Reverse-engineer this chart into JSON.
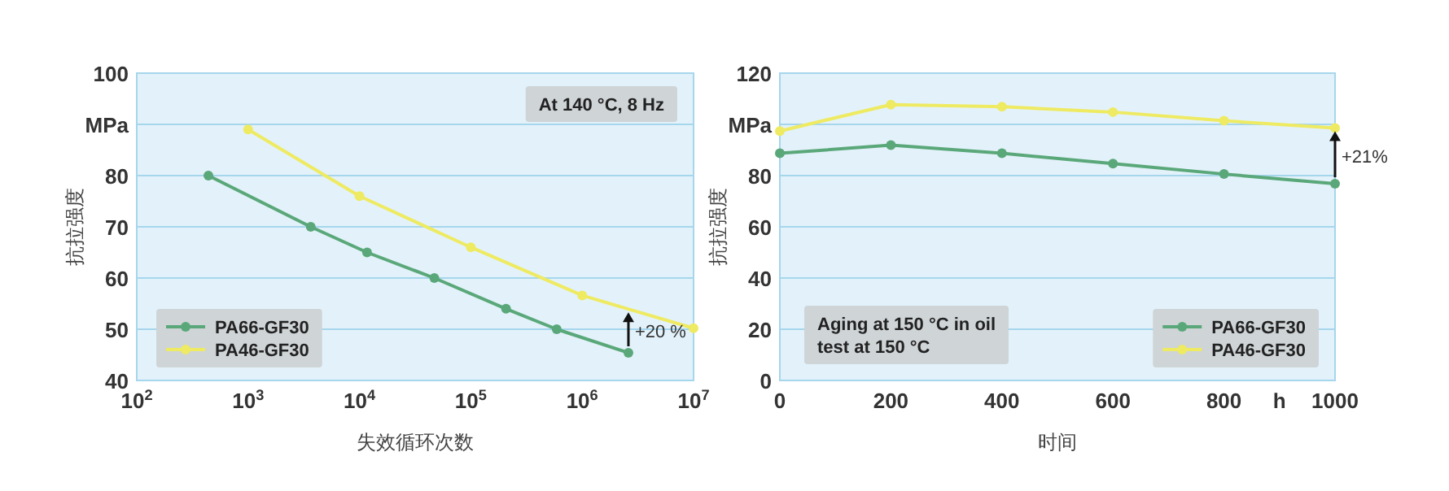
{
  "chart_data": [
    {
      "type": "line",
      "xlabel": "失效循环次数",
      "ylabel": "抗拉强度",
      "log": "x",
      "xlim": [
        100,
        10000000
      ],
      "ylim": [
        40,
        100
      ],
      "xticks": [
        {
          "value": 100,
          "label": "10$^{2}$"
        },
        {
          "value": 1000,
          "label": "10$^{3}$"
        },
        {
          "value": 10000,
          "label": "10$^{4}$"
        },
        {
          "value": 100000,
          "label": "10$^{5}$"
        },
        {
          "value": 1000000,
          "label": "10$^{6}$"
        },
        {
          "value": 10000000,
          "label": "10$^{7}$"
        }
      ],
      "yticks": [
        40,
        50,
        60,
        70,
        80,
        {
          "value": 90,
          "label": "MPa"
        },
        100
      ],
      "grid": "y",
      "legend": "bottom left",
      "marker": "circle",
      "line_style": "solid",
      "series": [
        {
          "name": "PA66-GF30",
          "color": "#5aa87a",
          "x": [
            440,
            3650,
            11700,
            47000,
            207000,
            590000,
            2600000
          ],
          "values": [
            80,
            70,
            65,
            60,
            54,
            50,
            45.4
          ]
        },
        {
          "name": "PA46-GF30",
          "color": "#eeea62",
          "x": [
            1000,
            10000,
            100000,
            1000000,
            10000000
          ],
          "values": [
            89,
            76,
            66,
            56.6,
            50.2
          ]
        }
      ],
      "annotations": [
        "At 140 °C, 8  Hz",
        {
          "text": "+20 %",
          "x": 2600000,
          "y": 45.4
        }
      ]
    },
    {
      "type": "line",
      "xlabel": "时间",
      "ylabel": "抗拉强度",
      "xlim": [
        0,
        1000
      ],
      "ylim": [
        0,
        120
      ],
      "xticks": [
        0,
        200,
        400,
        600,
        800,
        {
          "value": 900,
          "label": "h"
        },
        1000
      ],
      "yticks": [
        0,
        20,
        40,
        60,
        80,
        {
          "value": 100,
          "label": "MPa"
        },
        120
      ],
      "grid": "y",
      "legend": "bottom right",
      "marker": "circle",
      "line_style": "solid",
      "series": [
        {
          "name": "PA66-GF30",
          "color": "#5aa87a",
          "x": [
            0,
            200,
            400,
            600,
            800,
            1000
          ],
          "values": [
            88.7,
            91.9,
            88.7,
            84.7,
            80.6,
            76.8
          ]
        },
        {
          "name": "PA46-GF30",
          "color": "#eeea62",
          "x": [
            0,
            200,
            400,
            600,
            800,
            1000
          ],
          "values": [
            97.4,
            107.7,
            106.9,
            104.8,
            101.4,
            98.6
          ]
        }
      ],
      "annotations": [
        "Aging at 150 °C in oil",
        "test at 150 °C",
        {
          "text": "+21%",
          "x": 1000,
          "y": 76.8
        }
      ]
    }
  ]
}
